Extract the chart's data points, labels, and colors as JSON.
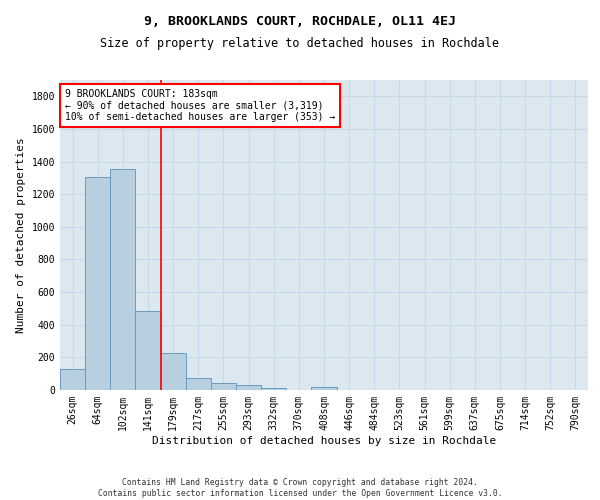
{
  "title": "9, BROOKLANDS COURT, ROCHDALE, OL11 4EJ",
  "subtitle": "Size of property relative to detached houses in Rochdale",
  "xlabel": "Distribution of detached houses by size in Rochdale",
  "ylabel": "Number of detached properties",
  "footer_line1": "Contains HM Land Registry data © Crown copyright and database right 2024.",
  "footer_line2": "Contains public sector information licensed under the Open Government Licence v3.0.",
  "bar_labels": [
    "26sqm",
    "64sqm",
    "102sqm",
    "141sqm",
    "179sqm",
    "217sqm",
    "255sqm",
    "293sqm",
    "332sqm",
    "370sqm",
    "408sqm",
    "446sqm",
    "484sqm",
    "523sqm",
    "561sqm",
    "599sqm",
    "637sqm",
    "675sqm",
    "714sqm",
    "752sqm",
    "790sqm"
  ],
  "bar_values": [
    130,
    1305,
    1355,
    485,
    225,
    75,
    45,
    28,
    12,
    0,
    20,
    0,
    0,
    0,
    0,
    0,
    0,
    0,
    0,
    0,
    0
  ],
  "bar_color": "#b8cfe0",
  "bar_edge_color": "#6a9cbf",
  "vline_x_index": 3.5,
  "vline_color": "red",
  "annotation_text": "9 BROOKLANDS COURT: 183sqm\n← 90% of detached houses are smaller (3,319)\n10% of semi-detached houses are larger (353) →",
  "annotation_box_color": "white",
  "annotation_box_edge": "red",
  "ylim": [
    0,
    1900
  ],
  "yticks": [
    0,
    200,
    400,
    600,
    800,
    1000,
    1200,
    1400,
    1600,
    1800
  ],
  "grid_color": "#c8d8e8",
  "bg_color": "#dce8f0",
  "title_fontsize": 9.5,
  "subtitle_fontsize": 8.5,
  "xlabel_fontsize": 8,
  "ylabel_fontsize": 8,
  "tick_fontsize": 7,
  "annotation_fontsize": 7,
  "footer_fontsize": 5.8
}
